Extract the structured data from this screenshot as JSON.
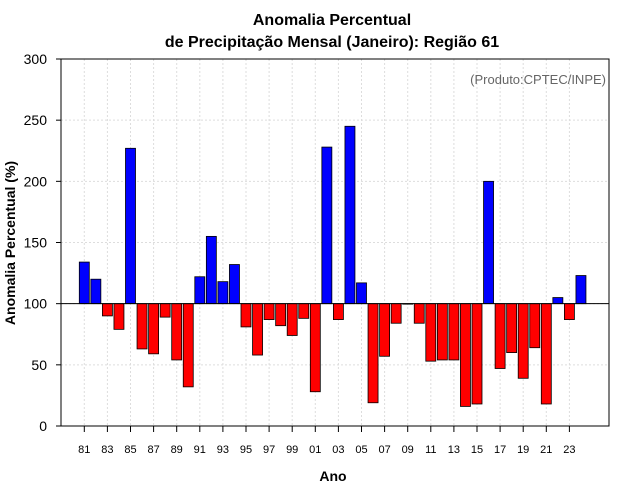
{
  "chart_data": {
    "type": "bar",
    "title_line1": "Anomalia Percentual",
    "title_line2": "de Precipitação Mensal (Janeiro): Região 61",
    "xlabel": "Ano",
    "ylabel": "Anomalia Percentual (%)",
    "credit": "(Produto:CPTEC/INPE)",
    "ylim": [
      0,
      300
    ],
    "yticks": [
      "0",
      "50",
      "100",
      "150",
      "200",
      "250",
      "300"
    ],
    "baseline": 100,
    "grid": true,
    "colors": {
      "above": "#0000ff",
      "below": "#ff0000",
      "outline": "#000000",
      "grid": "#dddddd"
    },
    "categories": [
      "81",
      "82",
      "83",
      "84",
      "85",
      "86",
      "87",
      "88",
      "89",
      "90",
      "91",
      "92",
      "93",
      "94",
      "95",
      "96",
      "97",
      "98",
      "99",
      "00",
      "01",
      "02",
      "03",
      "04",
      "05",
      "06",
      "07",
      "08",
      "09",
      "10",
      "11",
      "12",
      "13",
      "14",
      "15",
      "16",
      "17",
      "18",
      "19",
      "20",
      "21",
      "22",
      "23",
      "24"
    ],
    "tick_labels": [
      "81",
      "83",
      "85",
      "87",
      "89",
      "91",
      "93",
      "95",
      "97",
      "99",
      "01",
      "03",
      "05",
      "07",
      "09",
      "11",
      "13",
      "15",
      "17",
      "19",
      "21",
      "23"
    ],
    "values": [
      134,
      120,
      90,
      79,
      227,
      63,
      59,
      89,
      54,
      32,
      122,
      155,
      118,
      132,
      81,
      58,
      87,
      82,
      74,
      88,
      28,
      228,
      87,
      245,
      117,
      19,
      57,
      84,
      100,
      84,
      53,
      54,
      54,
      16,
      18,
      200,
      47,
      60,
      39,
      64,
      18,
      105,
      87,
      123
    ]
  }
}
